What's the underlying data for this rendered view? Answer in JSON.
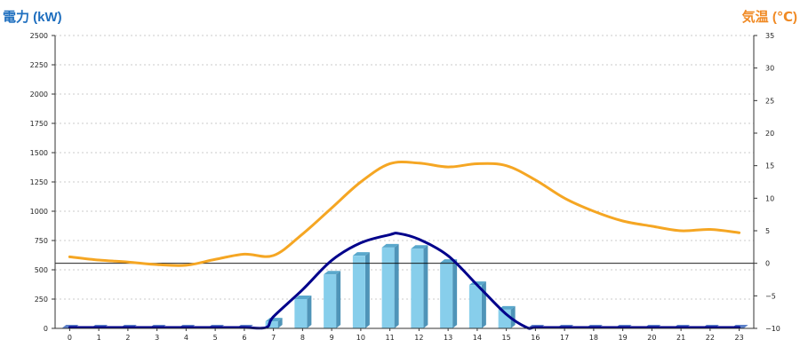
{
  "chart_data": {
    "type": "bar",
    "left_axis": {
      "title": "電力 (kW)",
      "color": "#1f6fbf",
      "ylim": [
        0,
        2500
      ],
      "ticks": [
        0,
        250,
        500,
        750,
        1000,
        1250,
        1500,
        1750,
        2000,
        2250,
        2500
      ],
      "tick_labels": [
        "0",
        "250",
        "500",
        "750",
        "1000",
        "1250",
        "1500",
        "1750",
        "2000",
        "2250",
        "2500"
      ]
    },
    "right_axis": {
      "title": "気温 (℃)",
      "color": "#f08a24",
      "ylim": [
        -10,
        35
      ],
      "ticks": [
        -10,
        -5,
        0,
        5,
        10,
        15,
        20,
        25,
        30,
        35
      ],
      "tick_labels": [
        "−10",
        "−5",
        "0",
        "5",
        "10",
        "15",
        "20",
        "25",
        "30",
        "35"
      ]
    },
    "categories": [
      "0",
      "1",
      "2",
      "3",
      "4",
      "5",
      "6",
      "7",
      "8",
      "9",
      "10",
      "11",
      "12",
      "13",
      "14",
      "15",
      "16",
      "17",
      "18",
      "19",
      "20",
      "21",
      "22",
      "23"
    ],
    "grid": true,
    "series": [
      {
        "type": "bar",
        "axis": "left",
        "color": "#87ceeb",
        "values": [
          0,
          0,
          0,
          0,
          0,
          0,
          0,
          60,
          250,
          460,
          620,
          690,
          680,
          560,
          370,
          160,
          0,
          0,
          0,
          0,
          0,
          0,
          0,
          0
        ]
      },
      {
        "type": "line",
        "axis": "left",
        "color": "#00008b",
        "x": [
          0,
          1,
          2,
          3,
          4,
          5,
          6,
          6.75,
          7,
          8,
          9,
          10,
          11,
          11.3,
          12,
          13,
          14,
          15,
          15.7,
          16,
          17,
          18,
          19,
          20,
          21,
          22,
          23
        ],
        "values": [
          0,
          0,
          0,
          0,
          0,
          0,
          0,
          0,
          100,
          330,
          580,
          730,
          800,
          810,
          760,
          620,
          370,
          120,
          0,
          0,
          0,
          0,
          0,
          0,
          0,
          0,
          0
        ]
      },
      {
        "type": "line",
        "axis": "right",
        "color": "#f5a623",
        "values": [
          1.0,
          0.5,
          0.2,
          -0.2,
          -0.3,
          0.6,
          1.4,
          1.2,
          4.5,
          8.5,
          12.5,
          15.3,
          15.4,
          14.8,
          15.3,
          15.0,
          12.8,
          10.0,
          8.0,
          6.5,
          5.7,
          5.0,
          5.2,
          4.7
        ]
      }
    ],
    "zero_reference": {
      "axis": "right",
      "value": 0,
      "color": "#000000"
    }
  }
}
